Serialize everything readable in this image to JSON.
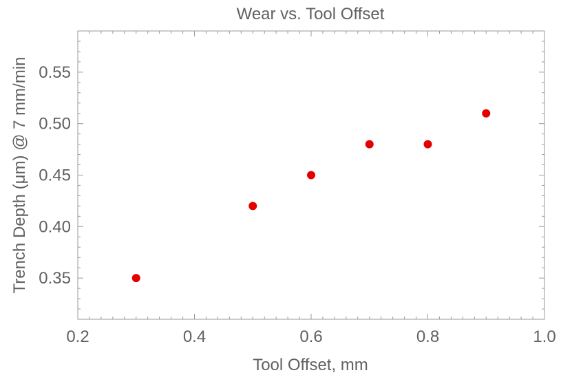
{
  "chart_data": {
    "type": "scatter",
    "title": "Wear vs. Tool Offset",
    "xlabel": "Tool Offset, mm",
    "ylabel": "Trench Depth (μm) @ 7 mm/min",
    "xlim": [
      0.2,
      1.0
    ],
    "ylim": [
      0.31,
      0.59
    ],
    "x_ticks": [
      0.2,
      0.4,
      0.6,
      0.8,
      1.0
    ],
    "x_tick_labels": [
      "0.2",
      "0.4",
      "0.6",
      "0.8",
      "1.0"
    ],
    "y_ticks": [
      0.35,
      0.4,
      0.45,
      0.5,
      0.55
    ],
    "y_tick_labels": [
      "0.35",
      "0.40",
      "0.45",
      "0.50",
      "0.55"
    ],
    "grid": false,
    "point_color": "#e30000",
    "series": [
      {
        "x": [
          0.3,
          0.5,
          0.6,
          0.7,
          0.8,
          0.9
        ],
        "y": [
          0.35,
          0.42,
          0.45,
          0.48,
          0.48,
          0.51
        ]
      }
    ]
  }
}
